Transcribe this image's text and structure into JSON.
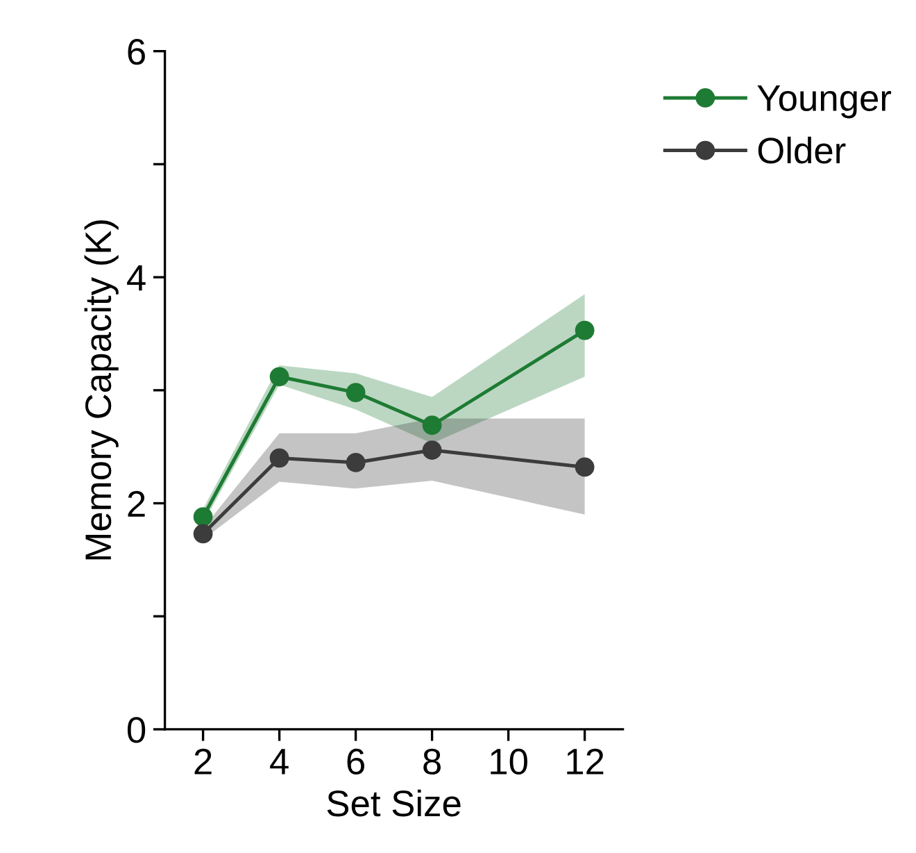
{
  "chart_data": {
    "type": "line",
    "xlabel": "Set Size",
    "ylabel": "Memory Capacity (K)",
    "x": [
      2,
      4,
      6,
      8,
      12
    ],
    "series": [
      {
        "name": "Younger",
        "color": "#1e7b34",
        "values": [
          1.88,
          3.12,
          2.98,
          2.69,
          3.53
        ],
        "lower": [
          1.82,
          3.05,
          2.83,
          2.53,
          3.12
        ],
        "upper": [
          1.95,
          3.22,
          3.15,
          2.94,
          3.85
        ]
      },
      {
        "name": "Older",
        "color": "#3c3c3c",
        "values": [
          1.73,
          2.4,
          2.36,
          2.47,
          2.32
        ],
        "lower": [
          1.68,
          2.19,
          2.13,
          2.2,
          1.9
        ],
        "upper": [
          1.78,
          2.62,
          2.62,
          2.75,
          2.75
        ]
      }
    ],
    "xlim": [
      1,
      13
    ],
    "xticks": [
      2,
      4,
      6,
      8,
      10,
      12
    ],
    "ylim": [
      0,
      6
    ],
    "yticks": [
      0,
      {
        "value": 1,
        "label": null
      },
      2,
      {
        "value": 3,
        "label": null
      },
      4,
      {
        "value": 5,
        "label": null
      },
      6
    ],
    "grid": false,
    "legend": "top right",
    "marker": "circle",
    "line_style": "solid"
  }
}
